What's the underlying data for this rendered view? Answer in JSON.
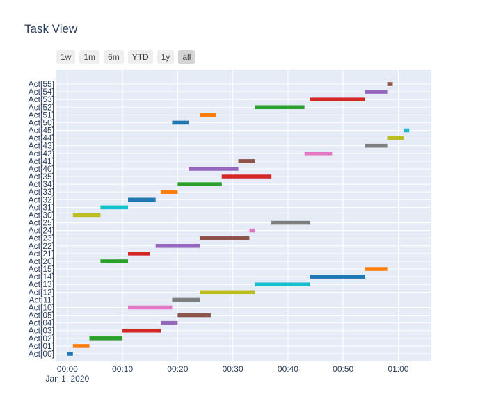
{
  "chart_data": {
    "type": "timeline",
    "title": "Task View",
    "x_date_label": "Jan 1, 2020",
    "x_ticks": [
      "00:00",
      "00:10",
      "00:20",
      "00:30",
      "00:40",
      "00:50",
      "01:00"
    ],
    "xlim": [
      "00:-2",
      "01:06"
    ],
    "grid": true,
    "range_buttons": [
      "1w",
      "1m",
      "6m",
      "YTD",
      "1y",
      "all"
    ],
    "active_range": "all",
    "tasks": [
      {
        "task": "Act[00]",
        "start": "00:00",
        "end": "00:01",
        "color": "#1f77b4"
      },
      {
        "task": "Act[01]",
        "start": "00:01",
        "end": "00:04",
        "color": "#ff7f0e"
      },
      {
        "task": "Act[02]",
        "start": "00:04",
        "end": "00:10",
        "color": "#2ca02c"
      },
      {
        "task": "Act[03]",
        "start": "00:10",
        "end": "00:17",
        "color": "#d62728"
      },
      {
        "task": "Act[04]",
        "start": "00:17",
        "end": "00:20",
        "color": "#9467bd"
      },
      {
        "task": "Act[05]",
        "start": "00:20",
        "end": "00:26",
        "color": "#8c564b"
      },
      {
        "task": "Act[10]",
        "start": "00:11",
        "end": "00:19",
        "color": "#e377c2"
      },
      {
        "task": "Act[11]",
        "start": "00:19",
        "end": "00:24",
        "color": "#7f7f7f"
      },
      {
        "task": "Act[12]",
        "start": "00:24",
        "end": "00:34",
        "color": "#bcbd22"
      },
      {
        "task": "Act[13]",
        "start": "00:34",
        "end": "00:44",
        "color": "#17becf"
      },
      {
        "task": "Act[14]",
        "start": "00:44",
        "end": "00:54",
        "color": "#1f77b4"
      },
      {
        "task": "Act[15]",
        "start": "00:54",
        "end": "00:58",
        "color": "#ff7f0e"
      },
      {
        "task": "Act[20]",
        "start": "00:06",
        "end": "00:11",
        "color": "#2ca02c"
      },
      {
        "task": "Act[21]",
        "start": "00:11",
        "end": "00:15",
        "color": "#d62728"
      },
      {
        "task": "Act[22]",
        "start": "00:16",
        "end": "00:24",
        "color": "#9467bd"
      },
      {
        "task": "Act[23]",
        "start": "00:24",
        "end": "00:33",
        "color": "#8c564b"
      },
      {
        "task": "Act[24]",
        "start": "00:33",
        "end": "00:34",
        "color": "#e377c2"
      },
      {
        "task": "Act[25]",
        "start": "00:37",
        "end": "00:44",
        "color": "#7f7f7f"
      },
      {
        "task": "Act[30]",
        "start": "00:01",
        "end": "00:06",
        "color": "#bcbd22"
      },
      {
        "task": "Act[31]",
        "start": "00:06",
        "end": "00:11",
        "color": "#17becf"
      },
      {
        "task": "Act[32]",
        "start": "00:11",
        "end": "00:16",
        "color": "#1f77b4"
      },
      {
        "task": "Act[33]",
        "start": "00:17",
        "end": "00:20",
        "color": "#ff7f0e"
      },
      {
        "task": "Act[34]",
        "start": "00:20",
        "end": "00:28",
        "color": "#2ca02c"
      },
      {
        "task": "Act[35]",
        "start": "00:28",
        "end": "00:37",
        "color": "#d62728"
      },
      {
        "task": "Act[40]",
        "start": "00:22",
        "end": "00:31",
        "color": "#9467bd"
      },
      {
        "task": "Act[41]",
        "start": "00:31",
        "end": "00:34",
        "color": "#8c564b"
      },
      {
        "task": "Act[42]",
        "start": "00:43",
        "end": "00:48",
        "color": "#e377c2"
      },
      {
        "task": "Act[43]",
        "start": "00:54",
        "end": "00:58",
        "color": "#7f7f7f"
      },
      {
        "task": "Act[44]",
        "start": "00:58",
        "end": "01:01",
        "color": "#bcbd22"
      },
      {
        "task": "Act[45]",
        "start": "01:01",
        "end": "01:02",
        "color": "#17becf"
      },
      {
        "task": "Act[50]",
        "start": "00:19",
        "end": "00:22",
        "color": "#1f77b4"
      },
      {
        "task": "Act[51]",
        "start": "00:24",
        "end": "00:27",
        "color": "#ff7f0e"
      },
      {
        "task": "Act[52]",
        "start": "00:34",
        "end": "00:43",
        "color": "#2ca02c"
      },
      {
        "task": "Act[53]",
        "start": "00:44",
        "end": "00:54",
        "color": "#d62728"
      },
      {
        "task": "Act[54]",
        "start": "00:54",
        "end": "00:58",
        "color": "#9467bd"
      },
      {
        "task": "Act[55]",
        "start": "00:58",
        "end": "00:59",
        "color": "#8c564b"
      }
    ]
  }
}
